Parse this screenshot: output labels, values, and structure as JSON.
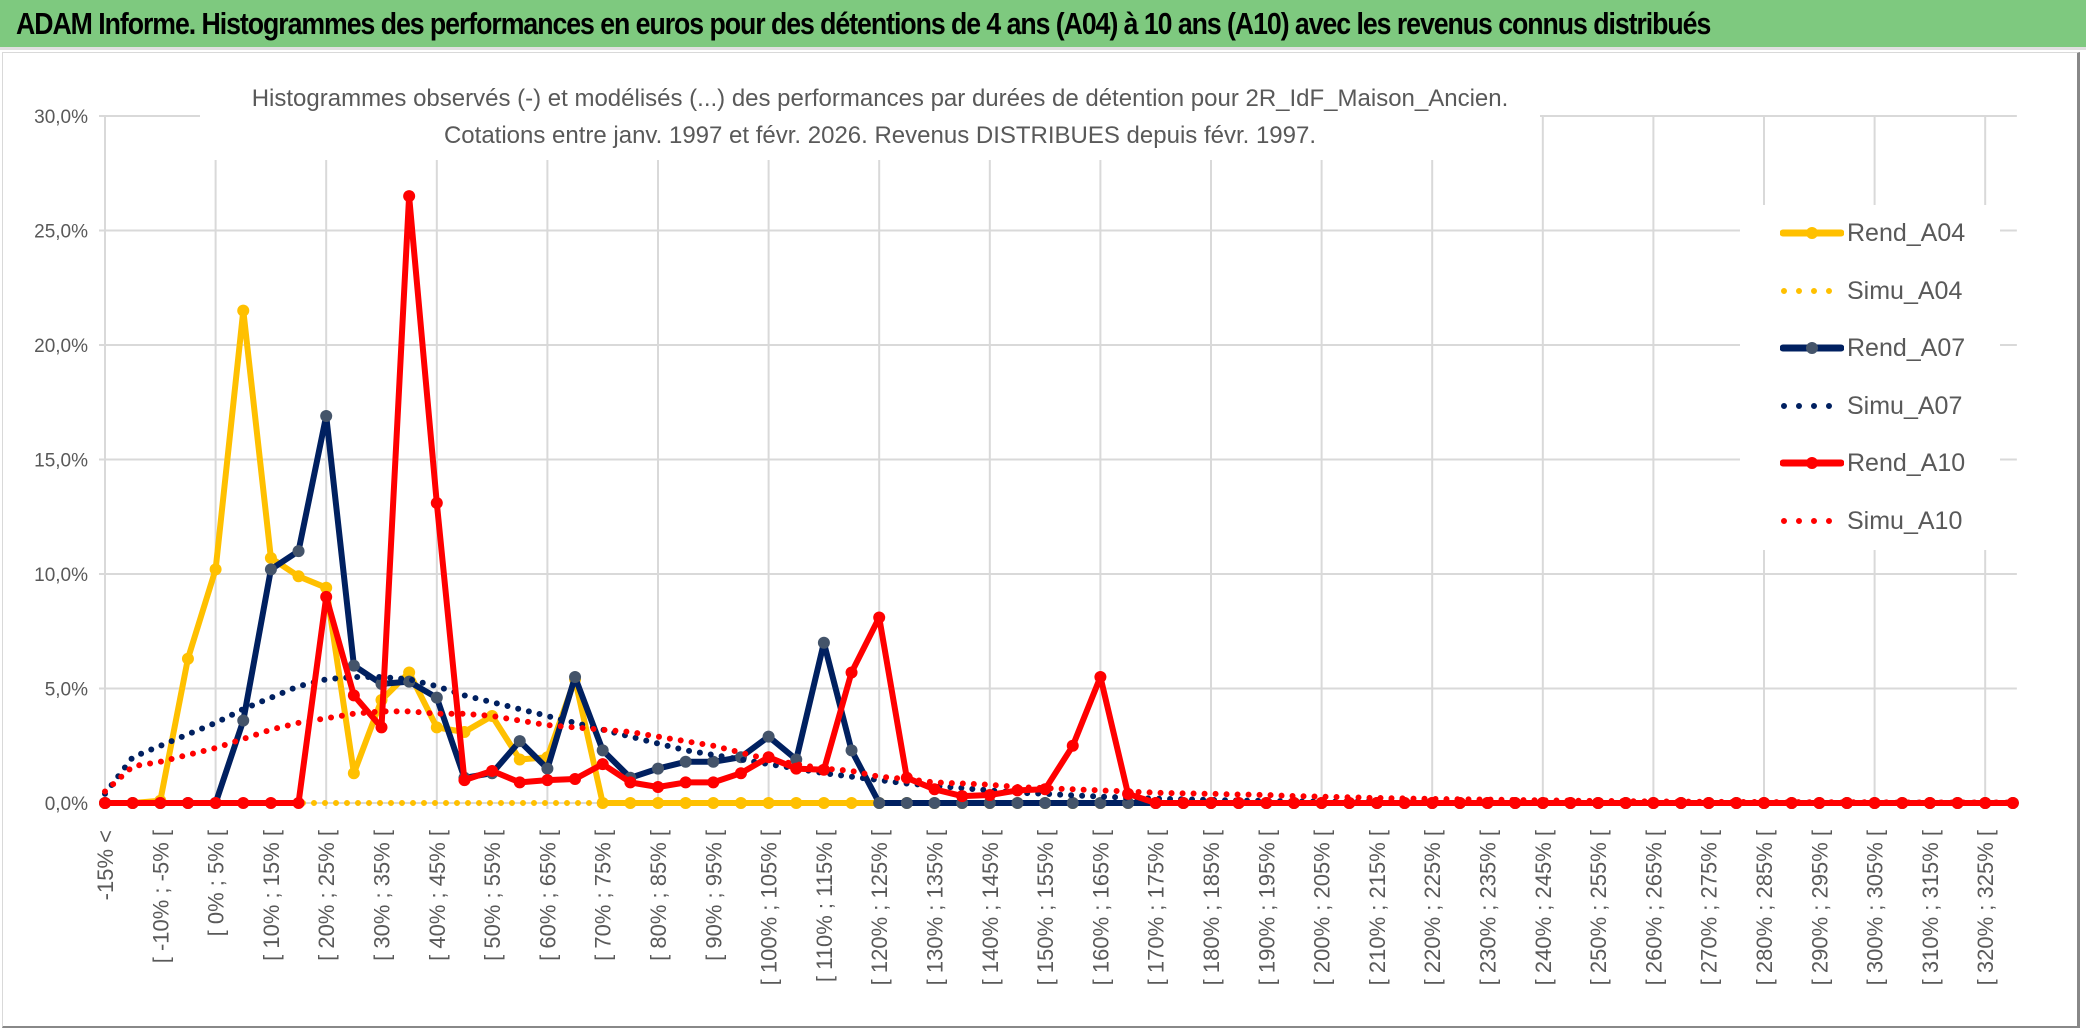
{
  "header": {
    "title": "ADAM Informe. Histogrammes des performances en euros pour des détentions de 4 ans (A04) à 10 ans (A10) avec les revenus connus distribués"
  },
  "chart_data": {
    "type": "line",
    "title_line1": "Histogrammes observés (-) et modélisés (...) des performances par durées de détention pour 2R_IdF_Maison_Ancien.",
    "title_line2": "Cotations entre janv. 1997 et févr. 2026. Revenus DISTRIBUES depuis févr. 1997.",
    "xlabel": "",
    "ylabel": "",
    "ylim": [
      0,
      30
    ],
    "y_ticks": [
      "0,0%",
      "5,0%",
      "10,0%",
      "15,0%",
      "20,0%",
      "25,0%",
      "30,0%"
    ],
    "y_tick_values": [
      0,
      5,
      10,
      15,
      20,
      25,
      30
    ],
    "grid": true,
    "legend_position": "right",
    "category_count": 70,
    "x_tick_labels": [
      "-15% <",
      "[ -10% ; -5% [",
      "[ 0% ; 5% [",
      "[ 10% ; 15% [",
      "[ 20% ; 25% [",
      "[ 30% ; 35% [",
      "[ 40% ; 45% [",
      "[ 50% ; 55% [",
      "[ 60% ; 65% [",
      "[ 70% ; 75% [",
      "[ 80% ; 85% [",
      "[ 90% ; 95% [",
      "[ 100% ; 105% [",
      "[ 110% ; 115% [",
      "[ 120% ; 125% [",
      "[ 130% ; 135% [",
      "[ 140% ; 145% [",
      "[ 150% ; 155% [",
      "[ 160% ; 165% [",
      "[ 170% ; 175% [",
      "[ 180% ; 185% [",
      "[ 190% ; 195% [",
      "[ 200% ; 205% [",
      "[ 210% ; 215% [",
      "[ 220% ; 225% [",
      "[ 230% ; 235% [",
      "[ 240% ; 245% [",
      "[ 250% ; 255% [",
      "[ 260% ; 265% [",
      "[ 270% ; 275% [",
      "[ 280% ; 285% [",
      "[ 290% ; 295% [",
      "[ 300% ; 305% [",
      "[ 310% ; 315% [",
      "[ 320% ; 325% ["
    ],
    "series": [
      {
        "name": "Rend_A04",
        "style": "solid",
        "color": "#ffc000",
        "marker_color": "#ffc000",
        "values": [
          0,
          0,
          0.1,
          6.3,
          10.2,
          21.5,
          10.7,
          9.9,
          9.4,
          1.3,
          4.5,
          5.7,
          3.3,
          3.1,
          3.8,
          1.9,
          2.0,
          5.4,
          0,
          0,
          0,
          0,
          0,
          0,
          0,
          0,
          0,
          0,
          0,
          0,
          0,
          0,
          0,
          0,
          0,
          0,
          0,
          0,
          0,
          0,
          0,
          0,
          0,
          0,
          0,
          0,
          0,
          0,
          0,
          0,
          0,
          0,
          0,
          0,
          0,
          0,
          0,
          0,
          0,
          0,
          0,
          0,
          0,
          0,
          0,
          0,
          0,
          0,
          0,
          0
        ]
      },
      {
        "name": "Simu_A04",
        "style": "dotted",
        "color": "#ffc000",
        "values": [
          0,
          0,
          0,
          0,
          0,
          0,
          0,
          0,
          0,
          0,
          0,
          0,
          0,
          0,
          0,
          0,
          0,
          0,
          0,
          0,
          0,
          0,
          0,
          0,
          0,
          0,
          0,
          0,
          0,
          0,
          0,
          0,
          0,
          0,
          0,
          0,
          0,
          0,
          0,
          0,
          0,
          0,
          0,
          0,
          0,
          0,
          0,
          0,
          0,
          0,
          0,
          0,
          0,
          0,
          0,
          0,
          0,
          0,
          0,
          0,
          0,
          0,
          0,
          0,
          0,
          0,
          0,
          0,
          0,
          0
        ]
      },
      {
        "name": "Rend_A07",
        "style": "solid",
        "color": "#002060",
        "marker_color": "#44546a",
        "values": [
          0,
          0,
          0,
          0,
          0,
          3.6,
          10.2,
          11.0,
          16.9,
          6.0,
          5.2,
          5.3,
          4.6,
          1.1,
          1.3,
          2.7,
          1.5,
          5.5,
          2.3,
          1.1,
          1.5,
          1.8,
          1.8,
          2.0,
          2.9,
          1.9,
          7.0,
          2.3,
          0,
          0,
          0,
          0,
          0,
          0,
          0,
          0,
          0,
          0,
          0,
          0,
          0,
          0,
          0,
          0,
          0,
          0,
          0,
          0,
          0,
          0,
          0,
          0,
          0,
          0,
          0,
          0,
          0,
          0,
          0,
          0,
          0,
          0,
          0,
          0,
          0,
          0,
          0,
          0,
          0,
          0
        ]
      },
      {
        "name": "Simu_A07",
        "style": "dotted",
        "color": "#002060",
        "values": [
          0.4,
          2.0,
          2.5,
          3.0,
          3.5,
          4.1,
          4.6,
          5.1,
          5.4,
          5.5,
          5.5,
          5.4,
          5.1,
          4.7,
          4.4,
          4.1,
          3.8,
          3.5,
          3.2,
          2.9,
          2.6,
          2.3,
          2.1,
          1.9,
          1.7,
          1.5,
          1.3,
          1.15,
          1.0,
          0.85,
          0.75,
          0.65,
          0.55,
          0.45,
          0.4,
          0.33,
          0.28,
          0.23,
          0.19,
          0.16,
          0.13,
          0.11,
          0.09,
          0.07,
          0.06,
          0.05,
          0.04,
          0.03,
          0.03,
          0.02,
          0.01,
          0.01,
          0.01,
          0.01,
          0.01,
          0.01,
          0.01,
          0.01,
          0.01,
          0.01,
          0.01,
          0.01,
          0.01,
          0.01,
          0.01,
          0.01,
          0.01,
          0.01,
          0.01,
          0.01
        ]
      },
      {
        "name": "Rend_A10",
        "style": "solid",
        "color": "#ff0000",
        "marker_color": "#ff0000",
        "values": [
          0,
          0,
          0,
          0,
          0,
          0,
          0,
          0,
          9.0,
          4.7,
          3.3,
          26.5,
          13.1,
          1.0,
          1.4,
          0.9,
          1.0,
          1.05,
          1.7,
          0.9,
          0.7,
          0.9,
          0.9,
          1.3,
          2.0,
          1.5,
          1.45,
          5.7,
          8.1,
          1.1,
          0.6,
          0.3,
          0.35,
          0.55,
          0.6,
          2.5,
          5.5,
          0.4,
          0,
          0,
          0,
          0,
          0,
          0,
          0,
          0,
          0,
          0,
          0,
          0,
          0,
          0,
          0,
          0,
          0,
          0,
          0,
          0,
          0,
          0,
          0,
          0,
          0,
          0,
          0,
          0,
          0,
          0,
          0,
          0
        ]
      },
      {
        "name": "Simu_A10",
        "style": "dotted",
        "color": "#ff0000",
        "values": [
          0.5,
          1.6,
          1.8,
          2.1,
          2.4,
          2.8,
          3.2,
          3.5,
          3.7,
          3.9,
          4.0,
          4.0,
          3.9,
          3.9,
          3.8,
          3.6,
          3.4,
          3.3,
          3.2,
          3.1,
          2.9,
          2.7,
          2.5,
          2.2,
          1.9,
          1.7,
          1.5,
          1.4,
          1.15,
          1.05,
          0.9,
          0.85,
          0.8,
          0.7,
          0.65,
          0.6,
          0.55,
          0.5,
          0.45,
          0.42,
          0.4,
          0.37,
          0.35,
          0.3,
          0.28,
          0.25,
          0.22,
          0.2,
          0.18,
          0.16,
          0.15,
          0.13,
          0.12,
          0.1,
          0.09,
          0.08,
          0.07,
          0.06,
          0.05,
          0.05,
          0.04,
          0.04,
          0.03,
          0.03,
          0.03,
          0.02,
          0.02,
          0.02,
          0.02,
          0.02
        ]
      }
    ]
  }
}
